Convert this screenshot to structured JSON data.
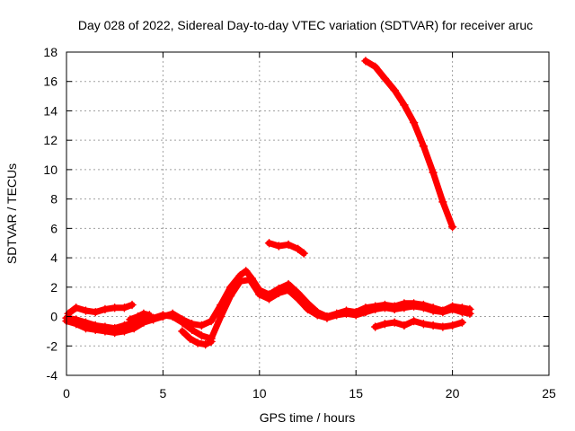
{
  "chart_data": {
    "type": "scatter",
    "title": "Day 028 of 2022, Sidereal Day-to-day VTEC variation (SDTVAR) for receiver aruc",
    "xlabel": "GPS time / hours",
    "ylabel": "SDTVAR / TECUs",
    "xlim": [
      0,
      25
    ],
    "ylim": [
      -4,
      18
    ],
    "xticks": [
      0,
      5,
      10,
      15,
      20,
      25
    ],
    "yticks": [
      -4,
      -2,
      0,
      2,
      4,
      6,
      8,
      10,
      12,
      14,
      16,
      18
    ],
    "xtick_labels": [
      "0",
      "5",
      "10",
      "15",
      "20",
      "25"
    ],
    "ytick_labels": [
      "-4",
      "-2",
      "0",
      "2",
      "4",
      "6",
      "8",
      "10",
      "12",
      "14",
      "16",
      "18"
    ],
    "grid": true,
    "marker": "plus",
    "color": "#ff0000",
    "series": [
      {
        "name": "track-main-1",
        "x": [
          0.0,
          0.5,
          1.0,
          1.5,
          2.0,
          2.5,
          3.0,
          3.5,
          4.0,
          4.5,
          5.0,
          5.5,
          6.0,
          6.5,
          7.0,
          7.5,
          8.0,
          8.5,
          9.0,
          9.3,
          9.6,
          10.0,
          10.5,
          11.0,
          11.5,
          12.0,
          12.5,
          13.0,
          13.5,
          14.0,
          14.5,
          15.0,
          15.5,
          16.0,
          16.5,
          17.0,
          17.5,
          18.0,
          18.5,
          19.0,
          19.5,
          20.0,
          20.5,
          20.9
        ],
        "y": [
          -0.3,
          -0.5,
          -0.8,
          -0.9,
          -1.0,
          -1.1,
          -1.0,
          -0.8,
          -0.4,
          -0.2,
          0.0,
          0.2,
          -0.2,
          -0.5,
          -0.6,
          -0.3,
          0.8,
          2.0,
          2.8,
          3.1,
          2.6,
          1.8,
          1.5,
          1.9,
          2.2,
          1.6,
          0.9,
          0.3,
          0.0,
          0.2,
          0.4,
          0.3,
          0.6,
          0.7,
          0.8,
          0.7,
          0.9,
          0.9,
          0.8,
          0.6,
          0.4,
          0.7,
          0.6,
          0.5
        ]
      },
      {
        "name": "track-main-2",
        "x": [
          0.0,
          0.5,
          1.0,
          1.5,
          2.0,
          2.5,
          3.0,
          3.5,
          4.0,
          4.5,
          5.0,
          5.5,
          6.0,
          6.5,
          7.0,
          7.5,
          8.0,
          8.5,
          9.0,
          9.5,
          10.0,
          10.5,
          11.0,
          11.5,
          12.0,
          12.5,
          13.0,
          13.5,
          14.0,
          14.5,
          15.0,
          15.5,
          16.0,
          16.5,
          17.0,
          17.5,
          18.0,
          18.5,
          19.0,
          19.5,
          20.0,
          20.5,
          20.9
        ],
        "y": [
          -0.1,
          -0.2,
          -0.4,
          -0.6,
          -0.7,
          -0.8,
          -0.6,
          -0.4,
          -0.2,
          -0.1,
          0.1,
          0.0,
          -0.4,
          -0.9,
          -1.3,
          -1.5,
          0.0,
          1.4,
          2.4,
          2.5,
          1.5,
          1.2,
          1.6,
          1.8,
          1.2,
          0.5,
          0.1,
          -0.1,
          0.1,
          0.2,
          0.1,
          0.3,
          0.5,
          0.6,
          0.5,
          0.6,
          0.7,
          0.6,
          0.4,
          0.3,
          0.5,
          0.3,
          0.2
        ]
      },
      {
        "name": "track-upper-arc",
        "x": [
          0.1,
          0.5,
          1.0,
          1.5,
          2.0,
          2.5,
          3.0,
          3.4
        ],
        "y": [
          0.2,
          0.6,
          0.4,
          0.3,
          0.5,
          0.6,
          0.6,
          0.8
        ]
      },
      {
        "name": "track-dip-6-7h",
        "x": [
          6.0,
          6.4,
          6.8,
          7.2,
          7.5
        ],
        "y": [
          -1.0,
          -1.5,
          -1.8,
          -1.9,
          -1.7
        ]
      },
      {
        "name": "track-mid-arc",
        "x": [
          3.3,
          3.7,
          4.0,
          4.3
        ],
        "y": [
          -0.2,
          0.0,
          0.2,
          0.1
        ]
      },
      {
        "name": "track-low-tail",
        "x": [
          16.0,
          16.5,
          17.0,
          17.5,
          18.0,
          18.5,
          19.0,
          19.5,
          20.0,
          20.5
        ],
        "y": [
          -0.7,
          -0.5,
          -0.4,
          -0.6,
          -0.3,
          -0.5,
          -0.6,
          -0.7,
          -0.6,
          -0.4
        ]
      },
      {
        "name": "track-elevated",
        "x": [
          10.5,
          11.0,
          11.5,
          12.0,
          12.3
        ],
        "y": [
          5.0,
          4.8,
          4.9,
          4.6,
          4.3
        ]
      },
      {
        "name": "track-descending",
        "x": [
          15.5,
          16.0,
          16.5,
          17.0,
          17.5,
          18.0,
          18.5,
          19.0,
          19.5,
          20.0
        ],
        "y": [
          17.4,
          17.0,
          16.2,
          15.4,
          14.4,
          13.2,
          11.6,
          9.8,
          7.8,
          6.1
        ]
      }
    ]
  }
}
